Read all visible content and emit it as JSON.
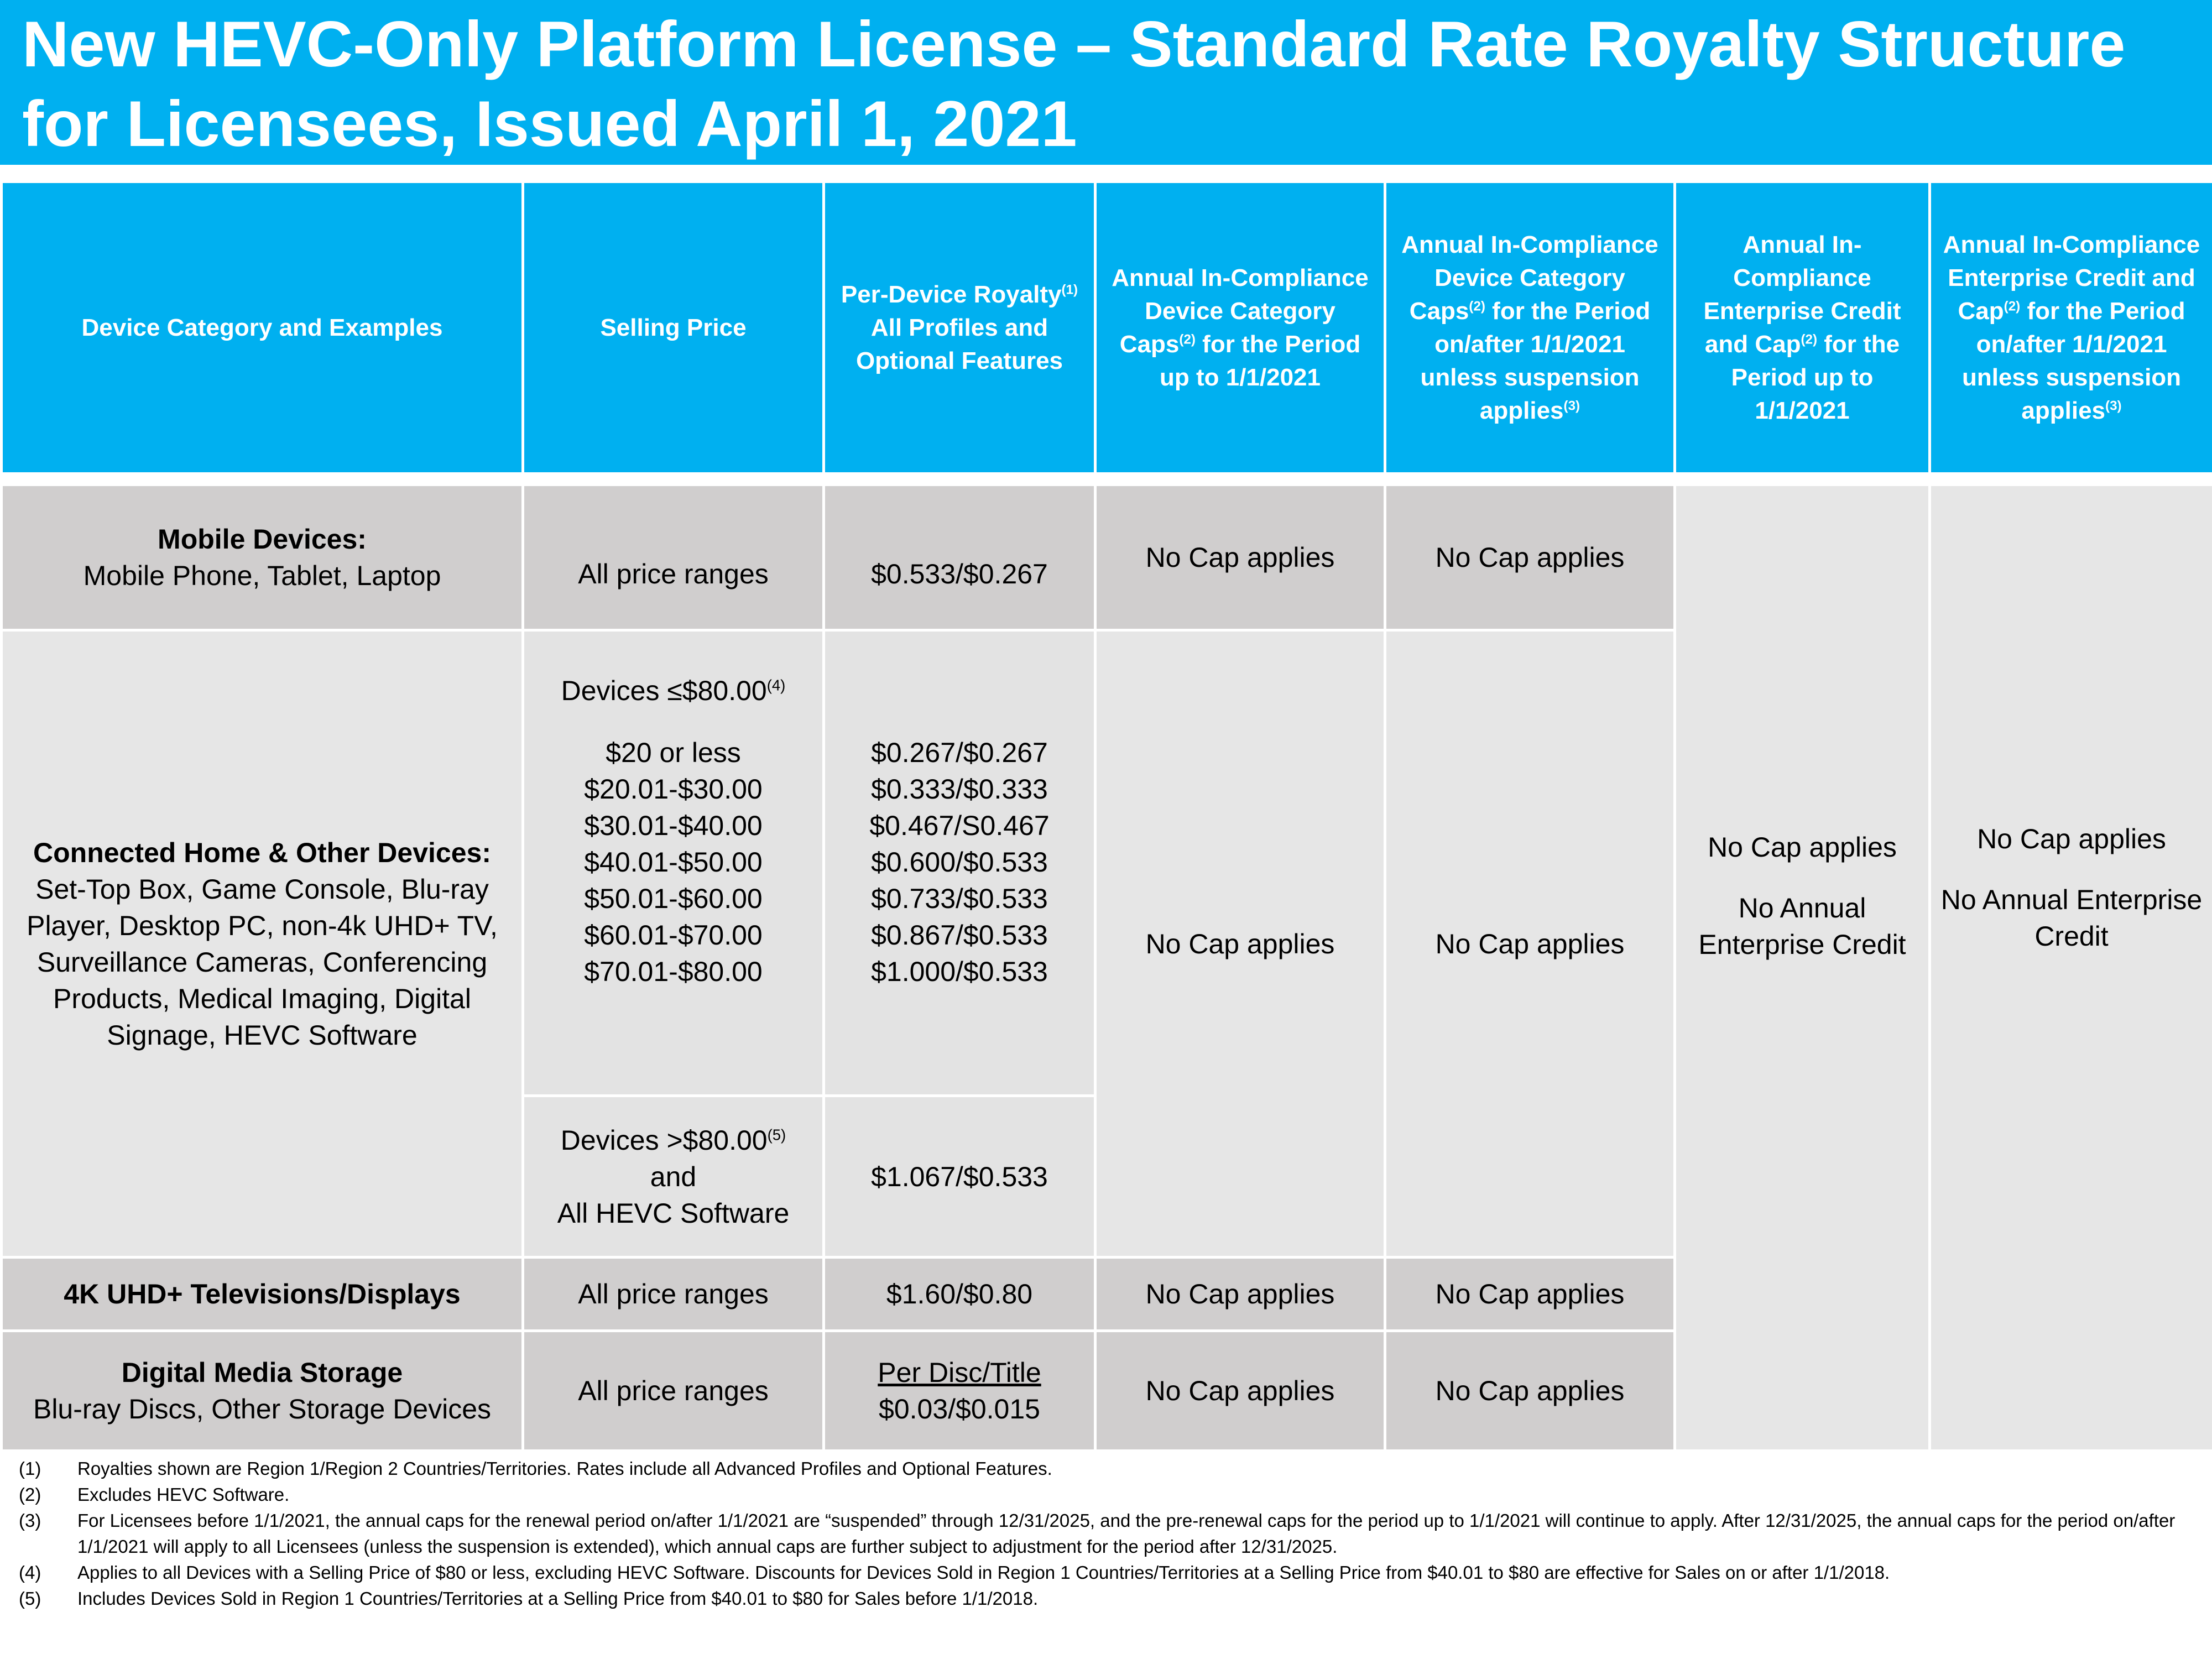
{
  "title": "New HEVC-Only Platform License – Standard Rate Royalty Structure for Licensees, Issued April 1, 2021",
  "headers": {
    "device_category": "Device Category and Examples",
    "selling_price": "Selling Price",
    "royalty_line1": "Per-Device Royalty",
    "royalty_sup": "(1)",
    "royalty_line2": "All Profiles and Optional Features",
    "device_cap_pre_a": "Annual In-Compliance Device Category Caps",
    "device_cap_pre_sup": "(2)",
    "device_cap_pre_b": " for the Period up to 1/1/2021",
    "device_cap_post_a": "Annual In-Compliance Device Category Caps",
    "device_cap_post_sup": "(2)",
    "device_cap_post_b": " for the Period on/after 1/1/2021 unless suspension  applies",
    "device_cap_post_sup2": "(3)",
    "ent_pre_a": "Annual In-Compliance Enterprise Credit and Cap",
    "ent_pre_sup": "(2)",
    "ent_pre_b": " for the Period up to 1/1/2021",
    "ent_post_a": "Annual In-Compliance Enterprise Credit and Cap",
    "ent_post_sup": "(2)",
    "ent_post_b": " for the Period on/after 1/1/2021 unless suspension applies",
    "ent_post_sup2": "(3)"
  },
  "rows": {
    "mobile": {
      "category_bold": "Mobile Devices:",
      "category_examples": "Mobile Phone, Tablet, Laptop",
      "price": "All price ranges",
      "royalty": "$0.533/$0.267",
      "cap_pre": "No Cap applies",
      "cap_post": "No Cap applies"
    },
    "connected_home": {
      "category_bold": "Connected Home & Other Devices:",
      "category_examples": "Set-Top Box, Game Console, Blu-ray Player, Desktop PC, non-4k UHD+ TV, Surveillance Cameras, Conferencing Products, Medical Imaging, Digital Signage, HEVC Software",
      "low_heading": "Devices ≤$80.00",
      "low_heading_sup": "(4)",
      "tiers": [
        {
          "price": "$20 or less",
          "royalty": "$0.267/$0.267"
        },
        {
          "price": "$20.01-$30.00",
          "royalty": "$0.333/$0.333"
        },
        {
          "price": "$30.01-$40.00",
          "royalty": "$0.467/S0.467"
        },
        {
          "price": "$40.01-$50.00",
          "royalty": "$0.600/$0.533"
        },
        {
          "price": "$50.01-$60.00",
          "royalty": "$0.733/$0.533"
        },
        {
          "price": "$60.01-$70.00",
          "royalty": "$0.867/$0.533"
        },
        {
          "price": "$70.01-$80.00",
          "royalty": "$1.000/$0.533"
        }
      ],
      "high_heading": "Devices >$80.00",
      "high_heading_sup": "(5)",
      "high_and": "and",
      "high_software": "All HEVC Software",
      "high_royalty": "$1.067/$0.533",
      "cap_pre": "No Cap applies",
      "cap_post": "No Cap applies"
    },
    "uhd": {
      "category_bold": "4K UHD+ Televisions/Displays",
      "price": "All price ranges",
      "royalty": "$1.60/$0.80",
      "cap_pre": "No Cap applies",
      "cap_post": "No Cap applies"
    },
    "storage": {
      "category_bold": "Digital Media Storage",
      "category_examples": "Blu-ray Discs, Other Storage Devices",
      "price": "All price ranges",
      "royalty_underlined": "Per Disc/Title",
      "royalty": "$0.03/$0.015",
      "cap_pre": "No Cap applies",
      "cap_post": "No Cap applies"
    }
  },
  "enterprise": {
    "pre_cap": "No Cap applies",
    "pre_credit": "No Annual Enterprise Credit",
    "post_cap": "No Cap applies",
    "post_credit": "No Annual Enterprise Credit"
  },
  "footnotes": [
    {
      "num": "(1)",
      "text": "Royalties shown are Region 1/Region 2 Countries/Territories. Rates include all Advanced Profiles and Optional Features."
    },
    {
      "num": "(2)",
      "text": "Excludes HEVC Software."
    },
    {
      "num": "(3)",
      "text": "For Licensees before 1/1/2021, the annual caps for the renewal period on/after 1/1/2021 are “suspended” through 12/31/2025, and the pre-renewal caps for the period up to 1/1/2021 will continue to apply. After 12/31/2025, the annual caps for the period on/after 1/1/2021 will apply to all Licensees (unless the suspension is extended), which annual caps are further subject to adjustment for the period after 12/31/2025."
    },
    {
      "num": "(4)",
      "text": "Applies to all Devices with a Selling Price of $80 or less, excluding HEVC Software.  Discounts for Devices Sold in Region 1 Countries/Territories at a Selling Price from $40.01 to $80 are effective for Sales on or after 1/1/2018."
    },
    {
      "num": "(5)",
      "text": "Includes Devices Sold in Region 1 Countries/Territories at a Selling Price from $40.01 to $80 for Sales before 1/1/2018."
    }
  ]
}
